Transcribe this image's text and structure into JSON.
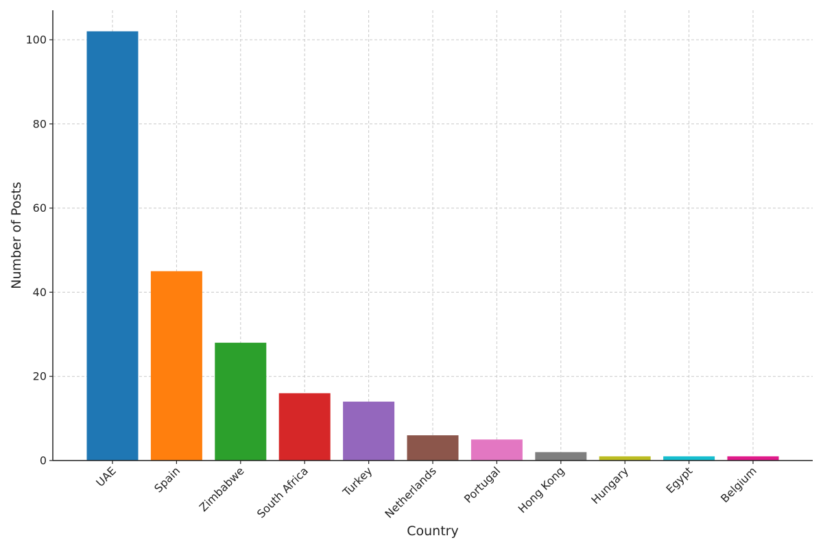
{
  "chart_data": {
    "type": "bar",
    "xlabel": "Country",
    "ylabel": "Number of Posts",
    "categories": [
      "UAE",
      "Spain",
      "Zimbabwe",
      "South Africa",
      "Turkey",
      "Netherlands",
      "Portugal",
      "Hong Kong",
      "Hungary",
      "Egypt",
      "Belgium"
    ],
    "values": [
      102,
      45,
      28,
      16,
      14,
      6,
      5,
      2,
      1,
      1,
      1
    ],
    "colors": [
      "#1f77b4",
      "#ff7f0e",
      "#2ca02c",
      "#d62728",
      "#9467bd",
      "#8c564b",
      "#e377c2",
      "#7f7f7f",
      "#bcbd22",
      "#17becf",
      "#e01b8a"
    ],
    "yticks": [
      0,
      20,
      40,
      60,
      80,
      100
    ],
    "ylim": [
      0,
      107
    ],
    "grid": true,
    "legend": "none"
  }
}
